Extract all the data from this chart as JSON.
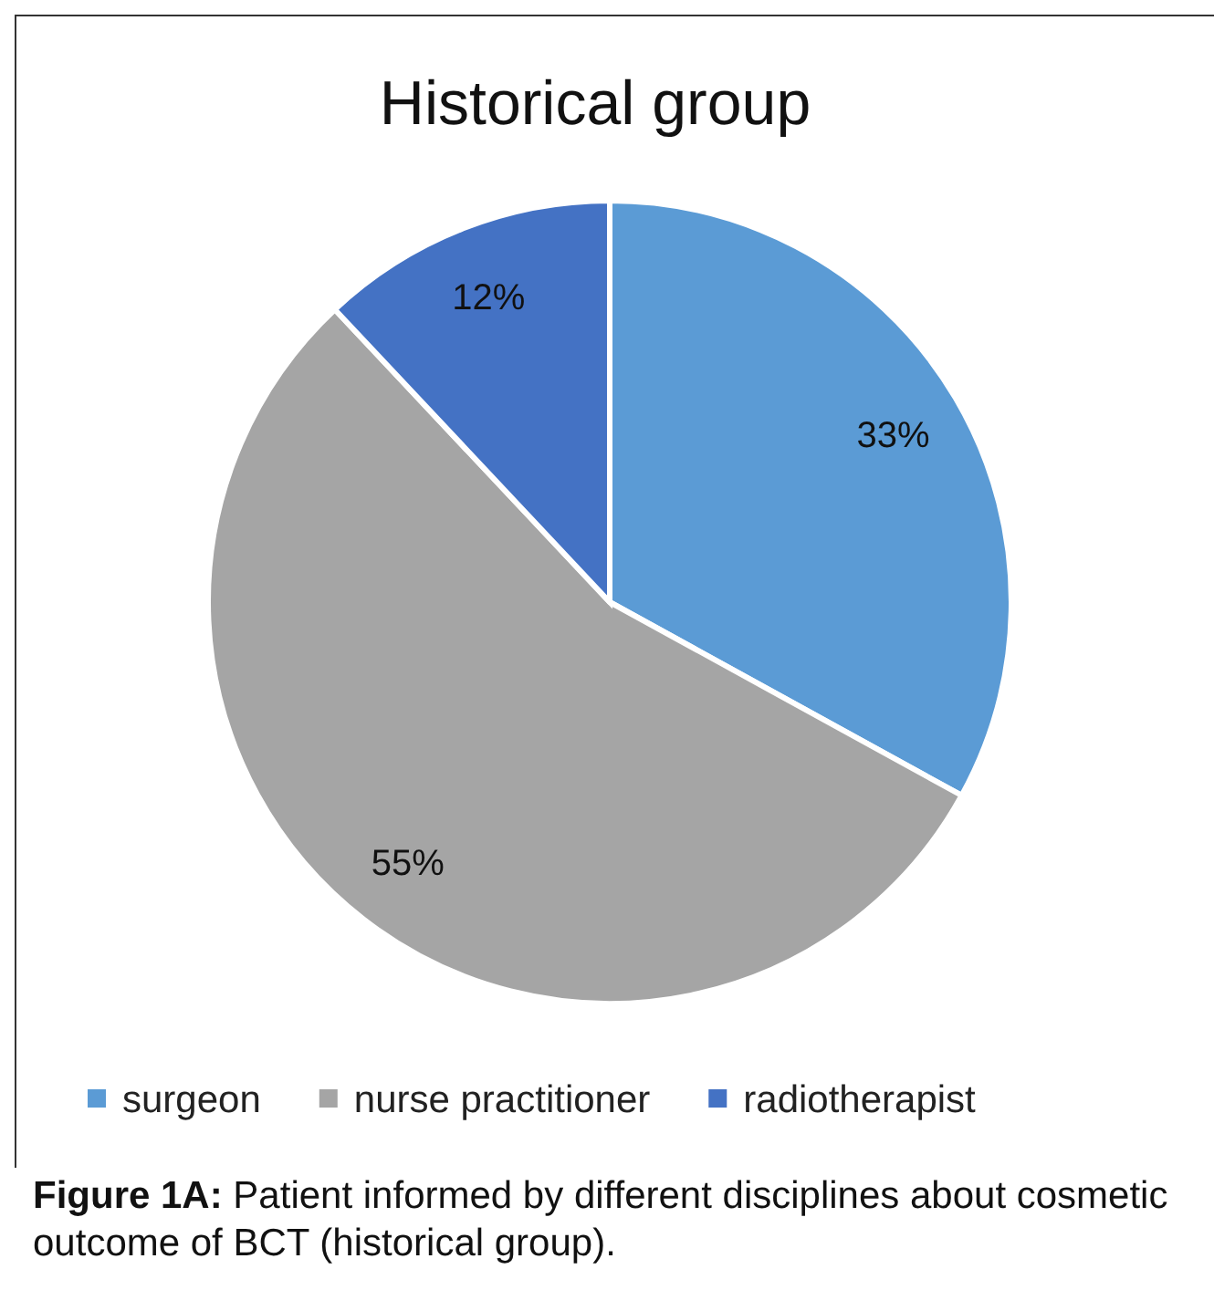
{
  "chart_data": {
    "type": "pie",
    "title": "Historical group",
    "categories": [
      "surgeon",
      "nurse practitioner",
      "radiotherapist"
    ],
    "values": [
      33,
      55,
      12
    ],
    "colors": [
      "#5b9bd5",
      "#a5a5a5",
      "#4472c4"
    ],
    "value_labels": [
      "33%",
      "55%",
      "12%"
    ],
    "legend": "bottom",
    "annotations": [
      "Figure 1A: Patient informed by different disciplines about cosmetic outcome of BCT (historical group)."
    ]
  }
}
